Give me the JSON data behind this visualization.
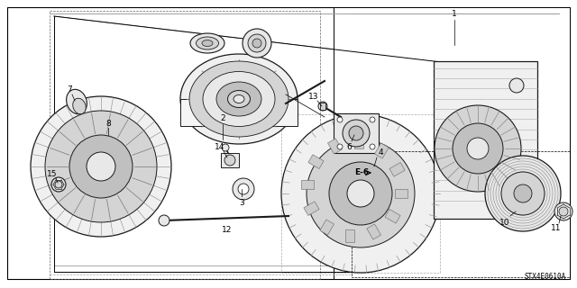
{
  "background_color": "#ffffff",
  "fig_width": 6.4,
  "fig_height": 3.2,
  "dpi": 100,
  "diagram_code": "STX4E0610A",
  "label_fontsize": 6.5,
  "callout_fontsize": 6.5,
  "code_fontsize": 5.5
}
